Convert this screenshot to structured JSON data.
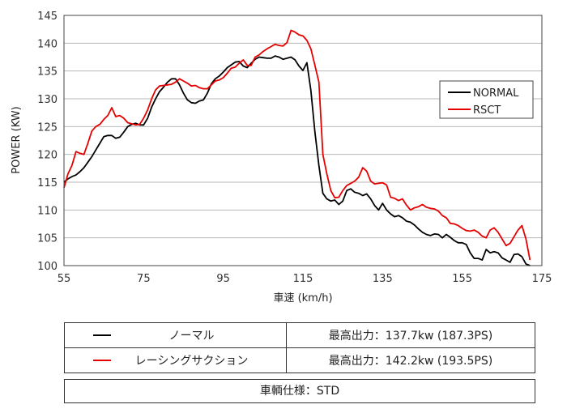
{
  "chart_data": {
    "type": "line",
    "xlabel": "車速 (km/h)",
    "ylabel": "POWER (KW)",
    "xlim": [
      55,
      175
    ],
    "ylim": [
      100,
      145
    ],
    "xticks": [
      55,
      75,
      95,
      115,
      135,
      155,
      175
    ],
    "yticks": [
      100,
      105,
      110,
      115,
      120,
      125,
      130,
      135,
      140,
      145
    ],
    "grid": "horizontal",
    "legend_position": "right",
    "series": [
      {
        "name": "NORMAL",
        "color": "#000000",
        "x": [
          55,
          56,
          57,
          58,
          59,
          60,
          61,
          62,
          63,
          64,
          65,
          66,
          67,
          68,
          69,
          70,
          71,
          72,
          73,
          74,
          75,
          76,
          77,
          78,
          79,
          80,
          81,
          82,
          83,
          84,
          85,
          86,
          87,
          88,
          89,
          90,
          91,
          92,
          93,
          94,
          95,
          96,
          97,
          98,
          99,
          100,
          101,
          102,
          103,
          104,
          105,
          106,
          107,
          108,
          109,
          110,
          111,
          112,
          113,
          114,
          115,
          116,
          117,
          118,
          119,
          120,
          121,
          122,
          123,
          124,
          125,
          126,
          127,
          128,
          129,
          130,
          131,
          132,
          133,
          134,
          135,
          136,
          137,
          138,
          139,
          140,
          141,
          142,
          143,
          144,
          145,
          146,
          147,
          148,
          149,
          150,
          151,
          152,
          153,
          154,
          155,
          156,
          157,
          158,
          159,
          160,
          161,
          162,
          163,
          164,
          165,
          166,
          167,
          168,
          169,
          170,
          171,
          172
        ],
        "y": [
          115.0,
          115.6,
          116.0,
          116.3,
          116.9,
          117.6,
          118.6,
          119.6,
          120.8,
          122.0,
          123.2,
          123.4,
          123.4,
          122.9,
          123.1,
          124.0,
          125.0,
          125.4,
          125.6,
          125.3,
          125.3,
          126.5,
          128.5,
          130.0,
          131.3,
          132.1,
          133.0,
          133.6,
          133.6,
          132.5,
          131.0,
          129.8,
          129.3,
          129.2,
          129.6,
          129.8,
          131.0,
          132.7,
          133.6,
          134.1,
          134.8,
          135.6,
          136.1,
          136.6,
          136.7,
          135.9,
          135.6,
          136.4,
          137.1,
          137.5,
          137.4,
          137.3,
          137.3,
          137.7,
          137.5,
          137.1,
          137.3,
          137.5,
          137.0,
          135.9,
          135.1,
          136.5,
          131.5,
          124.0,
          118.0,
          113.0,
          112.0,
          111.6,
          111.8,
          111.0,
          111.6,
          113.5,
          113.8,
          113.2,
          113.0,
          112.6,
          112.9,
          112.0,
          110.8,
          110.0,
          111.2,
          110.0,
          109.3,
          108.8,
          109.0,
          108.6,
          108.0,
          107.8,
          107.3,
          106.6,
          106.0,
          105.6,
          105.4,
          105.7,
          105.6,
          105.0,
          105.6,
          105.1,
          104.5,
          104.1,
          104.1,
          103.8,
          102.3,
          101.3,
          101.3,
          101.0,
          102.9,
          102.3,
          102.5,
          102.3,
          101.4,
          101.0,
          100.6,
          102.0,
          102.1,
          101.6,
          100.3,
          99.8
        ]
      },
      {
        "name": "RSCT",
        "color": "#e60000",
        "x": [
          55,
          56,
          57,
          58,
          59,
          60,
          61,
          62,
          63,
          64,
          65,
          66,
          67,
          68,
          69,
          70,
          71,
          72,
          73,
          74,
          75,
          76,
          77,
          78,
          79,
          80,
          81,
          82,
          83,
          84,
          85,
          86,
          87,
          88,
          89,
          90,
          91,
          92,
          93,
          94,
          95,
          96,
          97,
          98,
          99,
          100,
          101,
          102,
          103,
          104,
          105,
          106,
          107,
          108,
          109,
          110,
          111,
          112,
          113,
          114,
          115,
          116,
          117,
          118,
          119,
          120,
          121,
          122,
          123,
          124,
          125,
          126,
          127,
          128,
          129,
          130,
          131,
          132,
          133,
          134,
          135,
          136,
          137,
          138,
          139,
          140,
          141,
          142,
          143,
          144,
          145,
          146,
          147,
          148,
          149,
          150,
          151,
          152,
          153,
          154,
          155,
          156,
          157,
          158,
          159,
          160,
          161,
          162,
          163,
          164,
          165,
          166,
          167,
          168,
          169,
          170,
          171,
          172
        ],
        "y": [
          114.0,
          116.5,
          118.0,
          120.5,
          120.2,
          120.0,
          122.0,
          124.2,
          125.0,
          125.4,
          126.3,
          127.0,
          128.4,
          126.8,
          127.0,
          126.5,
          125.7,
          125.5,
          125.3,
          125.4,
          126.5,
          128.0,
          130.0,
          131.6,
          132.3,
          132.4,
          132.5,
          132.6,
          133.0,
          133.6,
          133.2,
          132.8,
          132.3,
          132.4,
          132.0,
          131.8,
          131.8,
          132.5,
          133.2,
          133.4,
          133.8,
          134.6,
          135.5,
          135.7,
          136.4,
          137.0,
          136.0,
          136.0,
          137.5,
          137.9,
          138.5,
          139.0,
          139.4,
          139.8,
          139.6,
          139.5,
          140.1,
          142.3,
          142.0,
          141.5,
          141.3,
          140.5,
          139.0,
          136.0,
          133.0,
          120.0,
          116.5,
          113.5,
          112.2,
          112.3,
          113.5,
          114.4,
          114.8,
          115.2,
          115.9,
          117.6,
          117.0,
          115.2,
          114.7,
          114.8,
          114.9,
          114.5,
          112.3,
          112.1,
          111.7,
          112.0,
          110.9,
          110.0,
          110.4,
          110.6,
          111.0,
          110.5,
          110.3,
          110.2,
          109.8,
          109.0,
          108.6,
          107.6,
          107.5,
          107.2,
          106.7,
          106.3,
          106.2,
          106.4,
          106.0,
          105.3,
          105.0,
          106.4,
          106.8,
          106.0,
          104.8,
          103.6,
          104.0,
          105.2,
          106.4,
          107.2,
          104.8,
          101.0
        ]
      }
    ]
  },
  "legend_table": {
    "rows": [
      {
        "name": "ノーマル",
        "output": "最高出力：137.7kw (187.3PS)",
        "color": "#000000"
      },
      {
        "name": "レーシングサクション",
        "output": "最高出力：142.2kw (193.5PS)",
        "color": "#e60000"
      }
    ],
    "spec": "車輌仕様：STD"
  }
}
